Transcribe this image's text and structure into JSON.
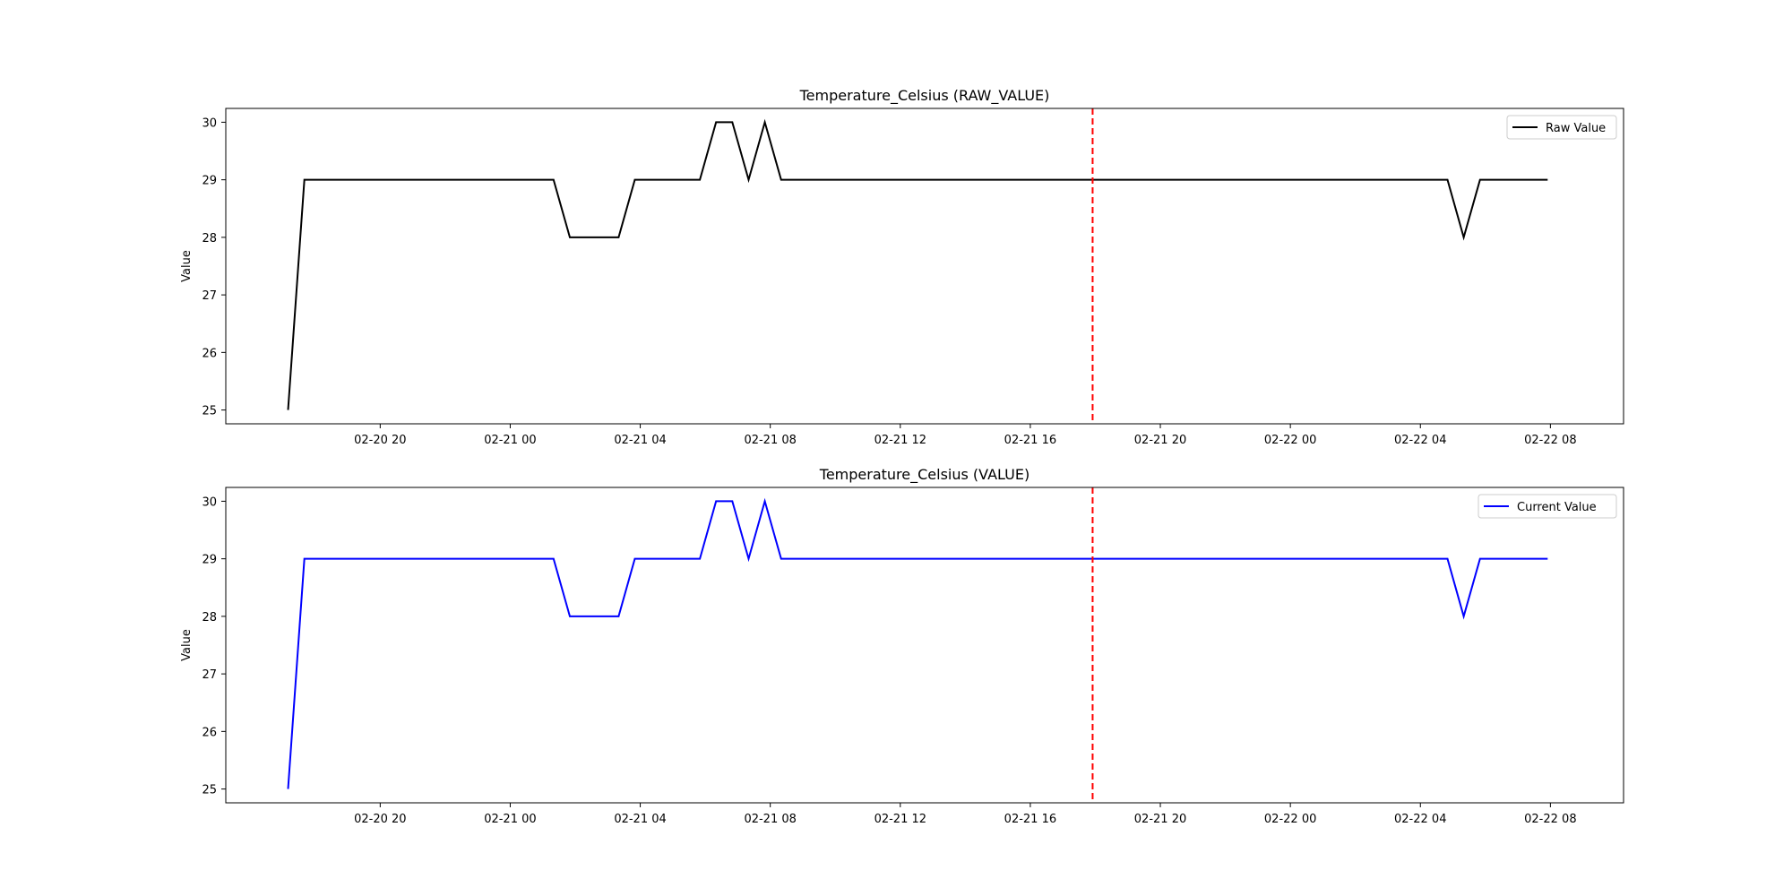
{
  "chart_data": [
    {
      "type": "line",
      "title": "Temperature_Celsius (RAW_VALUE)",
      "ylabel": "Value",
      "xlabel": "",
      "ylim": [
        24.76,
        30.24
      ],
      "xlim": [
        "2020-02-20 15:15",
        "2020-02-22 10:15"
      ],
      "yticks": [
        25,
        26,
        27,
        28,
        29,
        30
      ],
      "xticks": [
        "02-20 20",
        "02-21 00",
        "02-21 04",
        "02-21 08",
        "02-21 12",
        "02-21 16",
        "02-21 20",
        "02-22 00",
        "02-22 04",
        "02-22 08"
      ],
      "legend": "top-right",
      "vline": {
        "x": "2020-02-21 17:55",
        "color": "#ff0000",
        "style": "dashed"
      },
      "series": [
        {
          "name": "Raw Value",
          "color": "#000000",
          "x": [
            "2020-02-20 17:10",
            "2020-02-20 17:40",
            "2020-02-20 18:10",
            "2020-02-21 01:20",
            "2020-02-21 01:50",
            "2020-02-21 02:20",
            "2020-02-21 03:20",
            "2020-02-21 03:50",
            "2020-02-21 04:20",
            "2020-02-21 05:50",
            "2020-02-21 06:20",
            "2020-02-21 06:50",
            "2020-02-21 07:20",
            "2020-02-21 07:50",
            "2020-02-21 08:20",
            "2020-02-21 17:55",
            "2020-02-22 04:50",
            "2020-02-22 05:20",
            "2020-02-22 05:50",
            "2020-02-22 07:55"
          ],
          "y": [
            25,
            29,
            29,
            29,
            28,
            28,
            28,
            29,
            29,
            29,
            30,
            30,
            29,
            30,
            29,
            29,
            29,
            28,
            29,
            29
          ]
        }
      ]
    },
    {
      "type": "line",
      "title": "Temperature_Celsius (VALUE)",
      "ylabel": "Value",
      "xlabel": "",
      "ylim": [
        24.76,
        30.24
      ],
      "xlim": [
        "2020-02-20 15:15",
        "2020-02-22 10:15"
      ],
      "yticks": [
        25,
        26,
        27,
        28,
        29,
        30
      ],
      "xticks": [
        "02-20 20",
        "02-21 00",
        "02-21 04",
        "02-21 08",
        "02-21 12",
        "02-21 16",
        "02-21 20",
        "02-22 00",
        "02-22 04",
        "02-22 08"
      ],
      "legend": "top-right",
      "vline": {
        "x": "2020-02-21 17:55",
        "color": "#ff0000",
        "style": "dashed"
      },
      "series": [
        {
          "name": "Current Value",
          "color": "#0000ff",
          "x": [
            "2020-02-20 17:10",
            "2020-02-20 17:40",
            "2020-02-20 18:10",
            "2020-02-21 01:20",
            "2020-02-21 01:50",
            "2020-02-21 02:20",
            "2020-02-21 03:20",
            "2020-02-21 03:50",
            "2020-02-21 04:20",
            "2020-02-21 05:50",
            "2020-02-21 06:20",
            "2020-02-21 06:50",
            "2020-02-21 07:20",
            "2020-02-21 07:50",
            "2020-02-21 08:20",
            "2020-02-21 17:55",
            "2020-02-22 04:50",
            "2020-02-22 05:20",
            "2020-02-22 05:50",
            "2020-02-22 07:55"
          ],
          "y": [
            25,
            29,
            29,
            29,
            28,
            28,
            28,
            29,
            29,
            29,
            30,
            30,
            29,
            30,
            29,
            29,
            29,
            28,
            29,
            29
          ]
        }
      ]
    }
  ]
}
